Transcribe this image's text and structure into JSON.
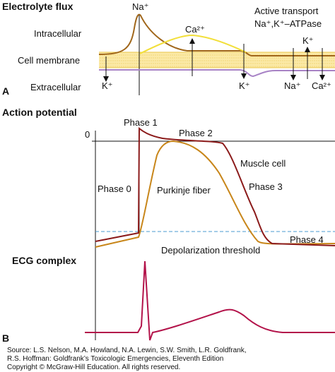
{
  "panel_a": {
    "title": "Electrolyte flux",
    "panel_label": "A",
    "compartments": [
      "Intracellular",
      "Cell membrane",
      "Extracellular"
    ],
    "ions": {
      "na_peak": "Na⁺",
      "ca": "Ca²⁺",
      "k_left": "K⁺",
      "k_mid": "K⁺",
      "pump_k": "K⁺",
      "pump_na": "Na⁺",
      "pump_ca": "Ca²⁺"
    },
    "pump": [
      "Active transport",
      "Na⁺,K⁺–ATPase"
    ]
  },
  "panel_b": {
    "title": "Action potential",
    "panel_label": "B",
    "zero": "0",
    "labels": {
      "phase1": "Phase 1",
      "phase2": "Phase 2",
      "muscle": "Muscle cell",
      "phase0": "Phase 0",
      "purkinje": "Purkinje fiber",
      "phase3": "Phase 3",
      "phase4": "Phase 4",
      "threshold": "Depolarization threshold"
    },
    "ecg_title": "ECG complex"
  },
  "source": [
    "Source: L.S. Nelson, M.A. Howland, N.A. Lewin, S.W. Smith, L.R. Goldfrank,",
    "R.S. Hoffman: Goldfrank’s Toxicologic Emergencies, Eleventh Edition",
    "Copyright © McGraw-Hill Education. All rights reserved."
  ]
}
